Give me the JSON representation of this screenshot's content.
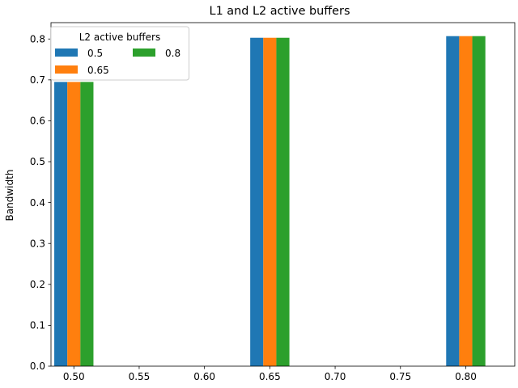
{
  "chart_data": {
    "type": "bar",
    "title": "L1 and L2 active buffers",
    "xlabel": "",
    "ylabel": "Bandwidth",
    "x": [
      0.5,
      0.65,
      0.8
    ],
    "bar_width": 0.01,
    "series": [
      {
        "name": "0.5",
        "color": "#1f77b4",
        "values": [
          0.695,
          0.803,
          0.807
        ]
      },
      {
        "name": "0.65",
        "color": "#ff7f0e",
        "values": [
          0.695,
          0.803,
          0.807
        ]
      },
      {
        "name": "0.8",
        "color": "#2ca02c",
        "values": [
          0.695,
          0.803,
          0.807
        ]
      }
    ],
    "xlim": [
      0.4825,
      0.8375
    ],
    "ylim": [
      0,
      0.84
    ],
    "xticks": [
      0.5,
      0.55,
      0.6,
      0.65,
      0.7,
      0.75,
      0.8
    ],
    "xtick_labels": [
      "0.50",
      "0.55",
      "0.60",
      "0.65",
      "0.70",
      "0.75",
      "0.80"
    ],
    "yticks": [
      0,
      0.1,
      0.2,
      0.3,
      0.4,
      0.5,
      0.6,
      0.7,
      0.8
    ],
    "ytick_labels": [
      "0.0",
      "0.1",
      "0.2",
      "0.3",
      "0.4",
      "0.5",
      "0.6",
      "0.7",
      "0.8"
    ],
    "legend": {
      "title": "L2 active buffers",
      "placement": "top-left",
      "columns": 2
    },
    "grid": false
  }
}
